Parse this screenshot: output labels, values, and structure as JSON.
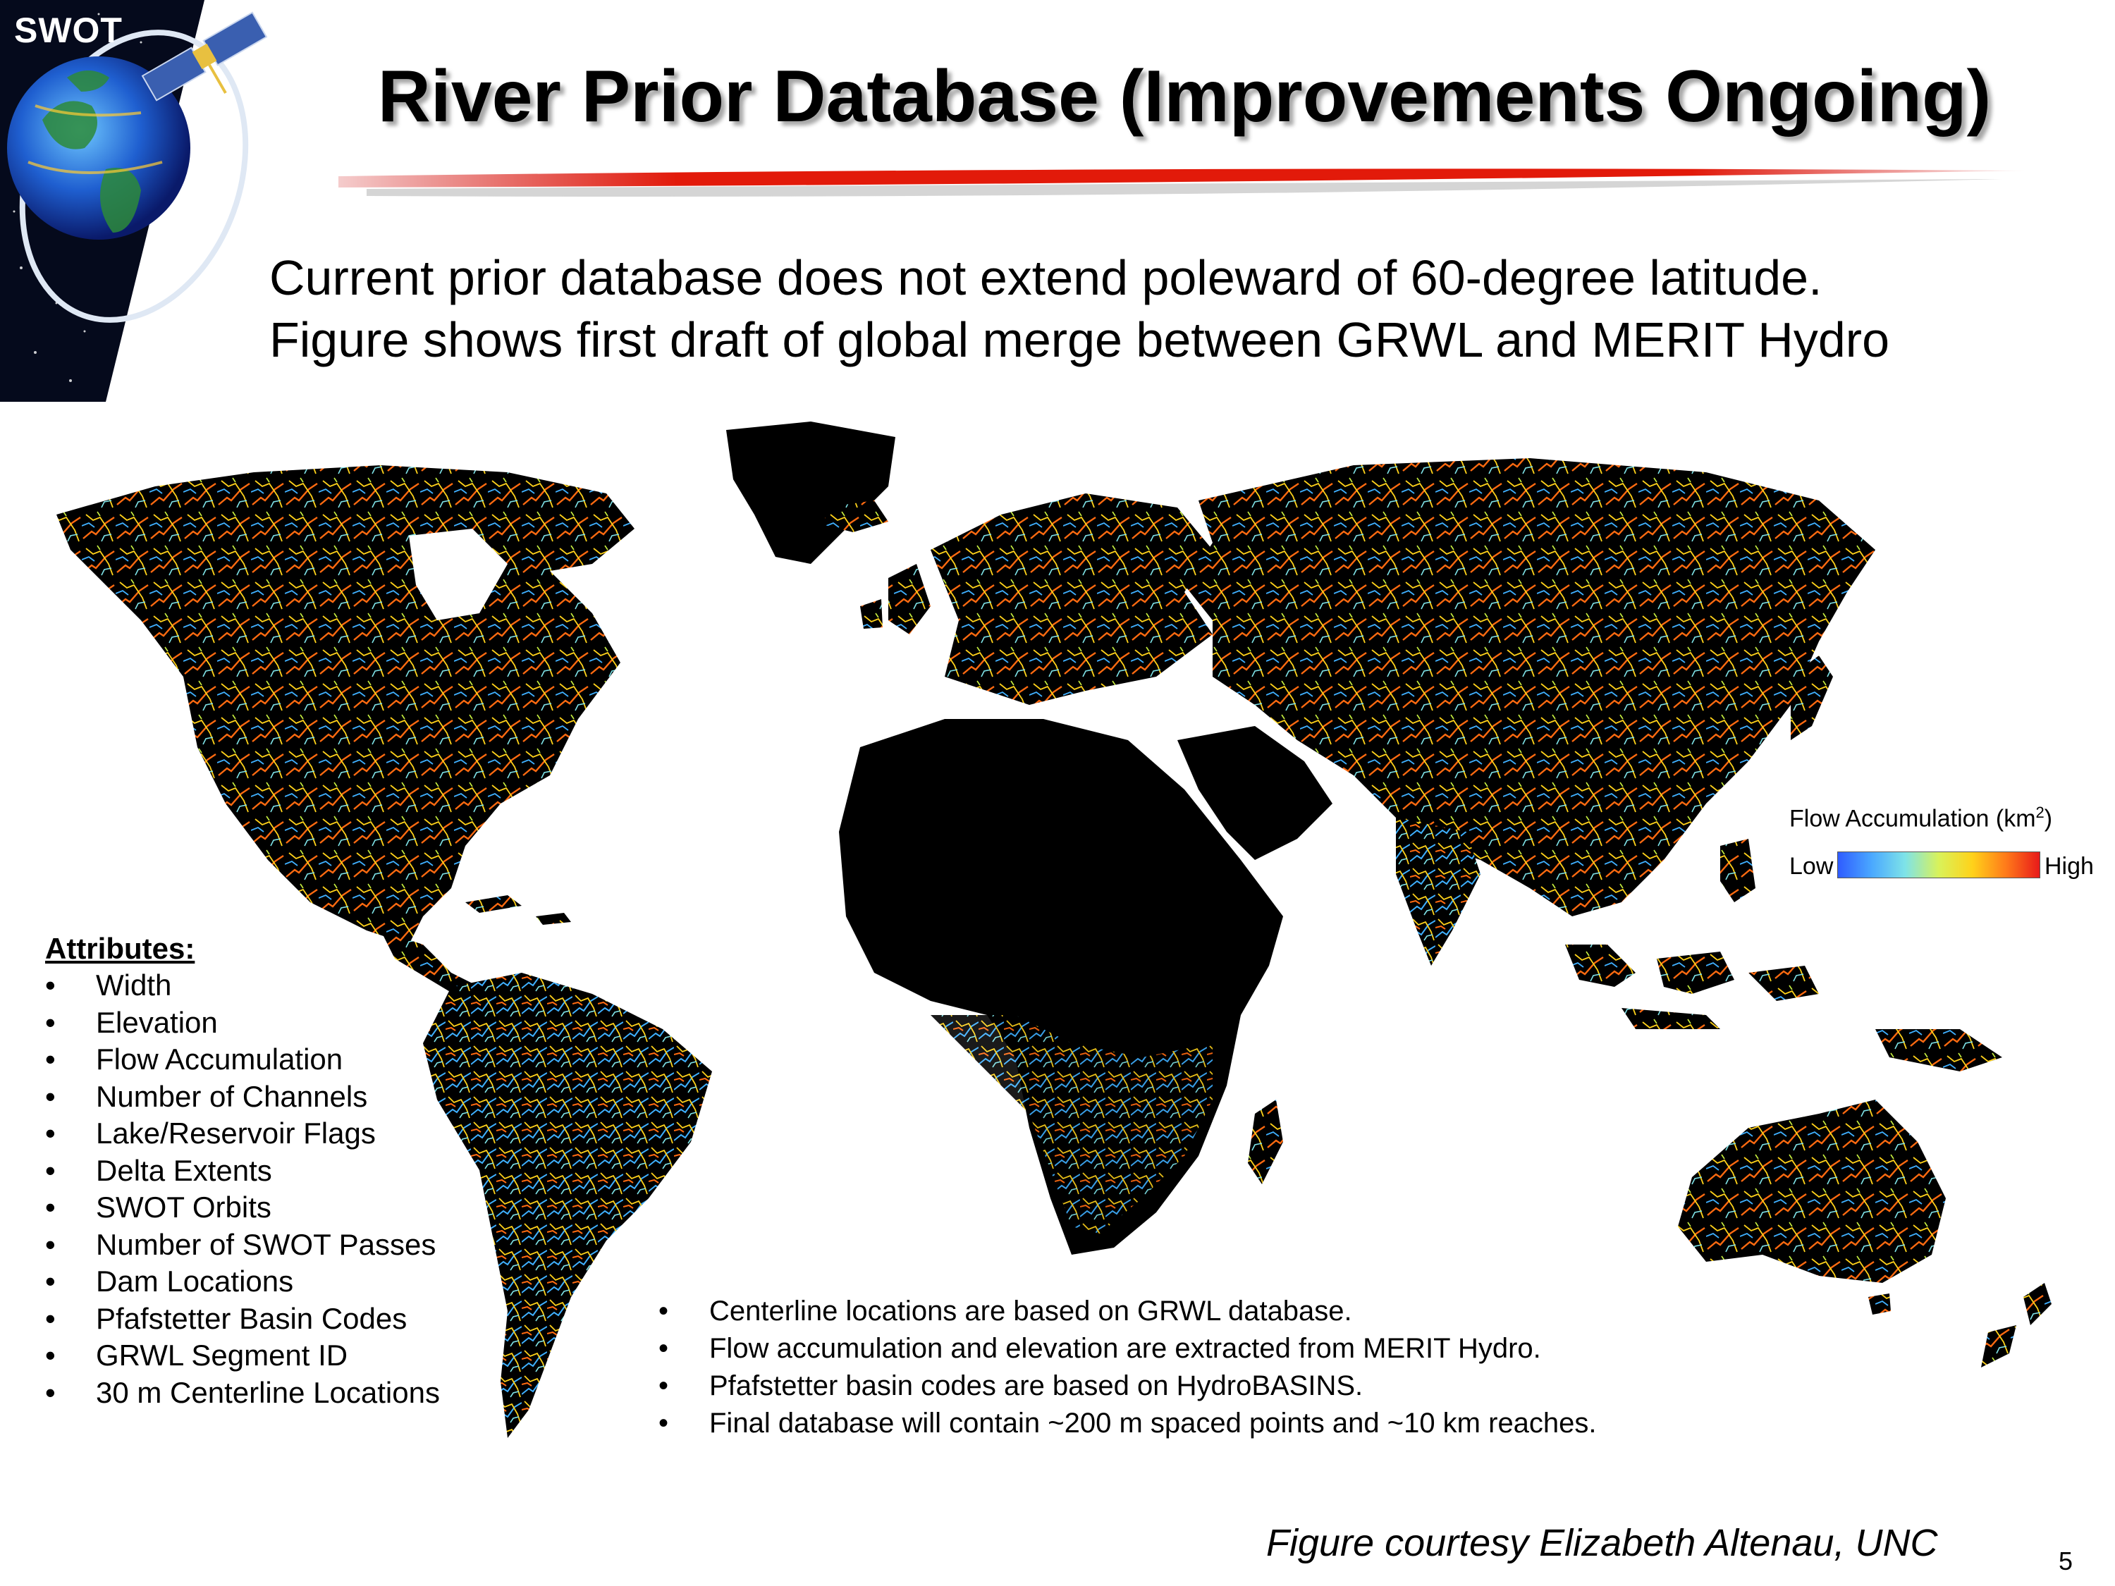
{
  "logo": {
    "text": "SWOT"
  },
  "title": "River Prior Database (Improvements Ongoing)",
  "intro": {
    "line1": "Current prior database does not extend poleward of 60-degree latitude.",
    "line2": "Figure shows first draft of global merge between GRWL and MERIT Hydro"
  },
  "legend": {
    "title": "Flow Accumulation (km",
    "title_sup": "2",
    "title_end": ")",
    "low": "Low",
    "high": "High",
    "colors": [
      "#2f5cff",
      "#4aa8ff",
      "#7ee3e8",
      "#d9f25a",
      "#ffd21a",
      "#ff7a1a",
      "#e81a1a"
    ]
  },
  "attributes": {
    "heading": "Attributes:",
    "items": [
      "Width",
      "Elevation",
      "Flow Accumulation",
      "Number of Channels",
      "Lake/Reservoir Flags",
      "Delta Extents",
      "SWOT Orbits",
      "Number of SWOT Passes",
      "Dam Locations",
      "Pfafstetter Basin Codes",
      "GRWL Segment ID",
      "30 m Centerline Locations"
    ]
  },
  "notes": [
    "Centerline locations are based on GRWL database.",
    "Flow accumulation and elevation are extracted from MERIT Hydro.",
    "Pfafstetter basin codes are based on HydroBASINS.",
    "Final database will contain ~200 m spaced points and ~10 km reaches."
  ],
  "credit": "Figure courtesy Elizabeth Altenau, UNC",
  "page_number": "5"
}
